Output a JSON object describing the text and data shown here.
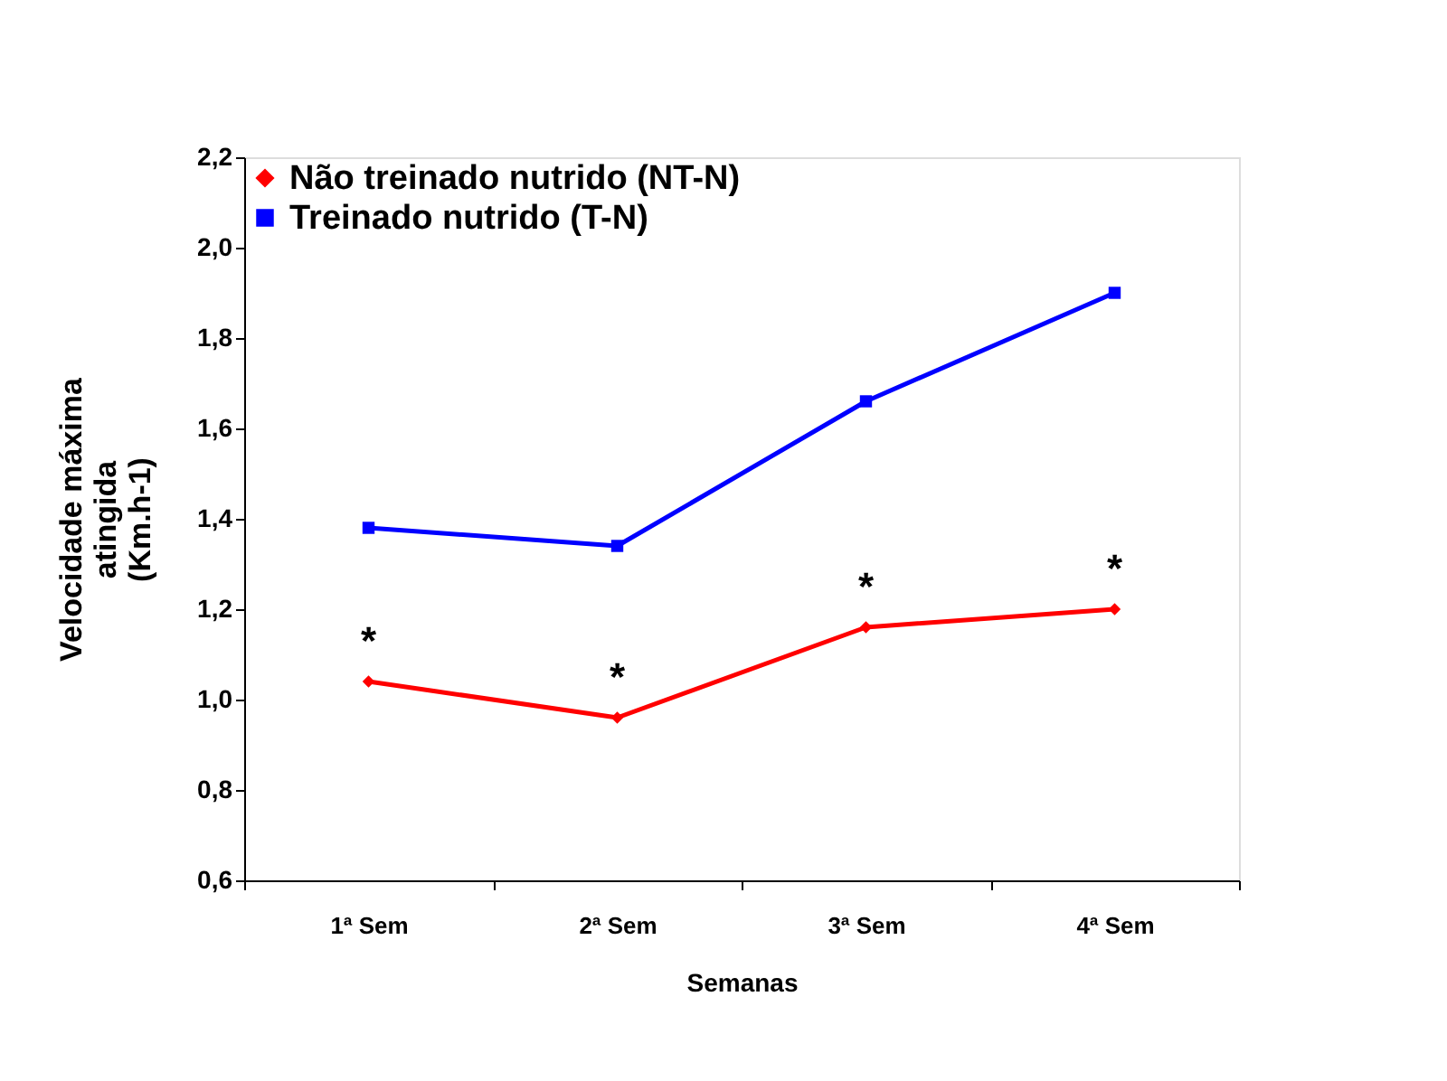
{
  "chart_data": {
    "type": "line",
    "xlabel": "Semanas",
    "ylabel": "Velocidade máxima\natingida\n(Km.h-1)",
    "categories": [
      "1ª Sem",
      "2ª Sem",
      "3ª Sem",
      "4ª Sem"
    ],
    "series": [
      {
        "name": "Não treinado nutrido (NT-N)",
        "color": "#ff0000",
        "marker": "diamond",
        "values": [
          1.04,
          0.96,
          1.16,
          1.2
        ]
      },
      {
        "name": "Treinado nutrido (T-N)",
        "color": "#0000ff",
        "marker": "square",
        "values": [
          1.38,
          1.34,
          1.66,
          1.9
        ]
      }
    ],
    "ylim": [
      0.6,
      2.2
    ],
    "yticks": [
      {
        "value": 0.6,
        "label": "0,6"
      },
      {
        "value": 0.8,
        "label": "0,8"
      },
      {
        "value": 1.0,
        "label": "1,0"
      },
      {
        "value": 1.2,
        "label": "1,2"
      },
      {
        "value": 1.4,
        "label": "1,4"
      },
      {
        "value": 1.6,
        "label": "1,6"
      },
      {
        "value": 1.8,
        "label": "1,8"
      },
      {
        "value": 2.0,
        "label": "2,0"
      },
      {
        "value": 2.2,
        "label": "2,2"
      }
    ],
    "annotations": [
      "*",
      "*",
      "*",
      "*"
    ],
    "legend": "top left",
    "grid": false,
    "line_style": "solid"
  }
}
